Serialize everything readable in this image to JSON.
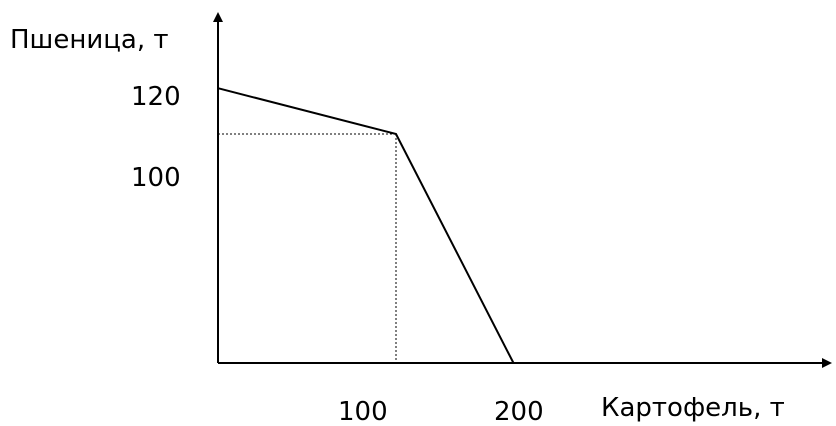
{
  "chart_data": {
    "type": "line",
    "xlabel": "Картофель, т",
    "ylabel": "Пшеница, т",
    "x": [
      0,
      100,
      166
    ],
    "y": [
      120,
      100,
      0
    ],
    "xticks": [
      "100",
      "200"
    ],
    "yticks": [
      "120",
      "100"
    ],
    "guide_point": {
      "x": 100,
      "y": 100
    },
    "grid": false,
    "colors": {
      "line": "#000000",
      "axis": "#000000",
      "guide": "#000000"
    }
  }
}
